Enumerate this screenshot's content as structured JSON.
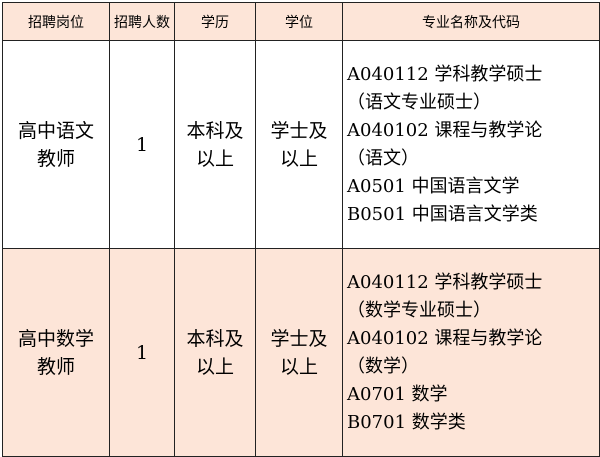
{
  "header": [
    "招聘岗位",
    "招聘人数",
    "学历",
    "学位",
    "专业名称及代码"
  ],
  "rows": [
    {
      "position": [
        "高中语文",
        "教师"
      ],
      "count": "1",
      "education": [
        "本科及",
        "以上"
      ],
      "degree": [
        "学士及",
        "以上"
      ],
      "majors": [
        "A040112 学科教学硕士",
        "（语文专业硕士）",
        "A040102 课程与教学论",
        "（语文）",
        "A0501  中国语言文学",
        "B0501  中国语言文学类"
      ]
    },
    {
      "position": [
        "高中数学",
        "教师"
      ],
      "count": "1",
      "education": [
        "本科及",
        "以上"
      ],
      "degree": [
        "学士及",
        "以上"
      ],
      "majors": [
        "A040112 学科教学硕士",
        "（数学专业硕士）",
        "A040102 课程与教学论",
        "（数学）",
        "A0701  数学",
        "B0701  数学类"
      ]
    }
  ],
  "colors": {
    "header_bg": "#fde5d8",
    "alt_row_bg": "#fde5d8",
    "border": "#222222"
  }
}
